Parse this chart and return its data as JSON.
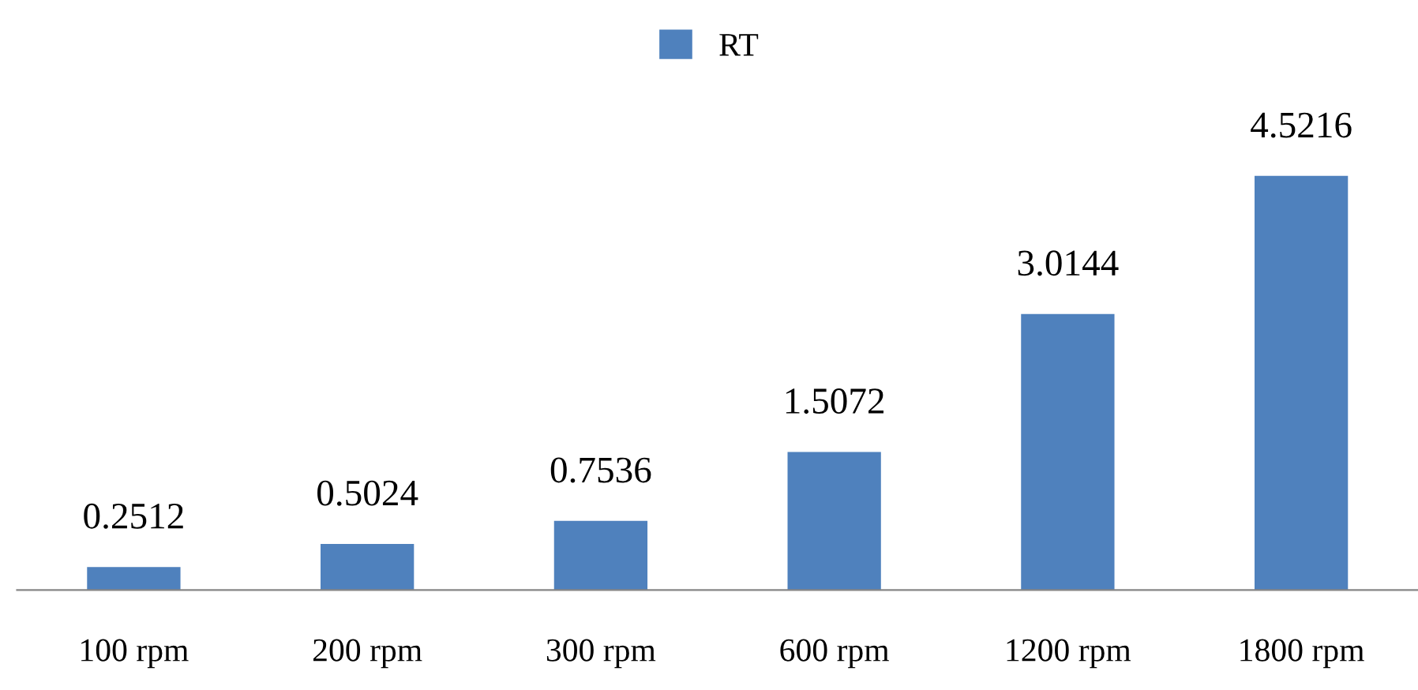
{
  "chart_data": {
    "type": "bar",
    "categories": [
      "100 rpm",
      "200 rpm",
      "300 rpm",
      "600 rpm",
      "1200 rpm",
      "1800 rpm"
    ],
    "series": [
      {
        "name": "RT",
        "color": "#4f81bd",
        "values": [
          0.2512,
          0.5024,
          0.7536,
          1.5072,
          3.0144,
          4.5216
        ]
      }
    ],
    "data_labels": true,
    "legend": "top",
    "grid": false
  }
}
